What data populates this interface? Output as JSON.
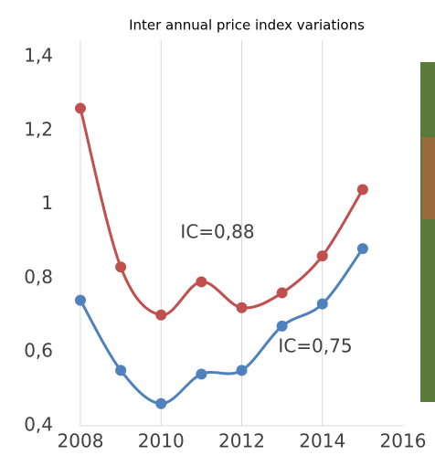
{
  "chart_data": {
    "type": "line",
    "title": "Inter annual price index variations",
    "x": [
      2008,
      2009,
      2010,
      2011,
      2012,
      2013,
      2014,
      2015
    ],
    "series": [
      {
        "name": "IC=0,88",
        "color": "#c0504d",
        "values": [
          1.26,
          0.83,
          0.7,
          0.79,
          0.72,
          0.76,
          0.86,
          1.04
        ]
      },
      {
        "name": "IC=0,75",
        "color": "#4f81bd",
        "values": [
          0.74,
          0.55,
          0.46,
          0.54,
          0.55,
          0.67,
          0.73,
          0.88
        ]
      }
    ],
    "xlim": [
      2008,
      2016
    ],
    "xticks": [
      2008,
      2010,
      2012,
      2014,
      2016
    ],
    "ylim": [
      0.4,
      1.4
    ],
    "yticks": [
      {
        "value": 0.4,
        "label": "0,4"
      },
      {
        "value": 0.6,
        "label": "0,6"
      },
      {
        "value": 0.8,
        "label": "0,8"
      },
      1,
      {
        "value": 1.2,
        "label": "1,2"
      },
      {
        "value": 1.4,
        "label": "1,4"
      }
    ],
    "grid": "x"
  }
}
